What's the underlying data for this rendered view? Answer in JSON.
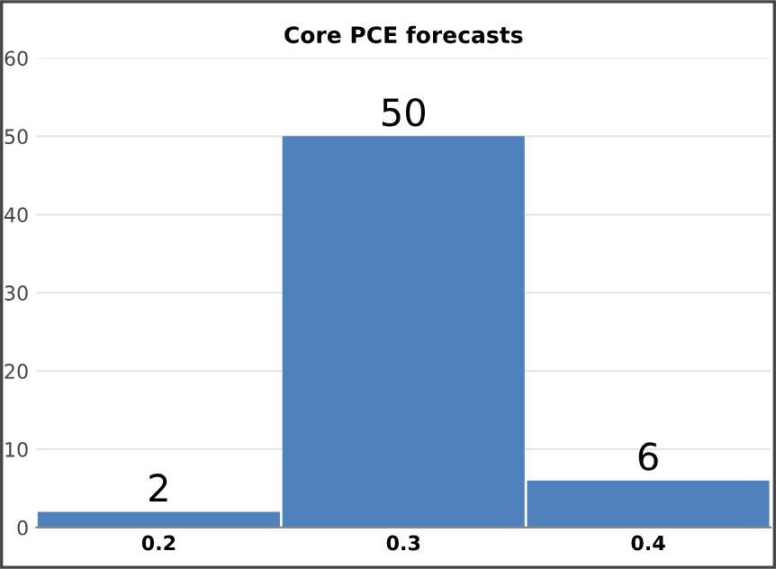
{
  "chart_data": {
    "type": "bar",
    "title": "Core PCE forecasts",
    "categories": [
      "0.2",
      "0.3",
      "0.4"
    ],
    "values": [
      2,
      50,
      6
    ],
    "color": "#4f81bd",
    "ylim": [
      0,
      60
    ],
    "yticks": [
      0,
      10,
      20,
      30,
      40,
      50,
      60
    ],
    "grid": "y",
    "data_labels": true
  }
}
